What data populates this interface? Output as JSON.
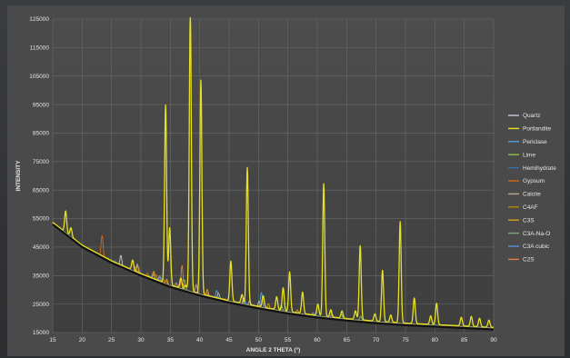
{
  "chart_data": {
    "type": "line",
    "xlabel": "ANGLE 2 THETA (°)",
    "ylabel": "INTENSITY",
    "xlim": [
      15,
      90
    ],
    "ylim": [
      15000,
      125000
    ],
    "xticks": [
      15,
      20,
      25,
      30,
      35,
      40,
      45,
      50,
      55,
      60,
      65,
      70,
      75,
      80,
      85,
      90
    ],
    "yticks": [
      15000,
      25000,
      35000,
      45000,
      55000,
      65000,
      75000,
      85000,
      95000,
      105000,
      115000,
      125000
    ],
    "grid": true,
    "legend_position": "right",
    "baseline": [
      [
        15,
        53000
      ],
      [
        20,
        45000
      ],
      [
        25,
        39500
      ],
      [
        30,
        35000
      ],
      [
        35,
        31000
      ],
      [
        40,
        28000
      ],
      [
        45,
        25500
      ],
      [
        50,
        23500
      ],
      [
        55,
        21700
      ],
      [
        60,
        20300
      ],
      [
        65,
        19200
      ],
      [
        70,
        18300
      ],
      [
        75,
        17600
      ],
      [
        80,
        17100
      ],
      [
        85,
        16600
      ],
      [
        90,
        16100
      ]
    ],
    "series": [
      {
        "name": "Quartz",
        "color": "#c8c8d8",
        "peaks": [
          [
            26.6,
            4000
          ],
          [
            50.1,
            2500
          ]
        ]
      },
      {
        "name": "Portlandite",
        "color": "#e8e020",
        "peaks": [
          [
            17.2,
            7500
          ],
          [
            18.1,
            3000
          ],
          [
            28.6,
            3500
          ],
          [
            34.2,
            62500
          ],
          [
            34.9,
            20000
          ],
          [
            36.8,
            3500
          ],
          [
            37.6,
            1500
          ],
          [
            38.4,
            97500
          ],
          [
            40.2,
            75000
          ],
          [
            45.3,
            14000
          ],
          [
            47.2,
            3000
          ],
          [
            48.1,
            48000
          ],
          [
            50.8,
            4000
          ],
          [
            53.1,
            4500
          ],
          [
            54.2,
            8000
          ],
          [
            55.3,
            14000
          ],
          [
            57.5,
            7500
          ],
          [
            60.1,
            4000
          ],
          [
            61.1,
            46500
          ],
          [
            62.3,
            2500
          ],
          [
            64.2,
            2500
          ],
          [
            66.5,
            3000
          ],
          [
            67.3,
            26000
          ],
          [
            69.8,
            2500
          ],
          [
            71.1,
            18000
          ],
          [
            72.5,
            2500
          ],
          [
            74.1,
            35500
          ],
          [
            76.5,
            9000
          ],
          [
            79.3,
            3000
          ],
          [
            80.3,
            7500
          ],
          [
            84.5,
            3000
          ],
          [
            86.2,
            3500
          ],
          [
            87.6,
            3000
          ],
          [
            89.2,
            2500
          ]
        ]
      },
      {
        "name": "Periclase",
        "color": "#4aa3df",
        "peaks": [
          [
            42.9,
            3000
          ],
          [
            62.3,
            2500
          ],
          [
            50.5,
            5500
          ]
        ]
      },
      {
        "name": "Lime",
        "color": "#8bc34a",
        "peaks": [
          [
            32.2,
            1500
          ],
          [
            37.4,
            3500
          ],
          [
            53.9,
            2000
          ],
          [
            64.1,
            1500
          ],
          [
            67.4,
            1500
          ]
        ]
      },
      {
        "name": "Hemihydrate",
        "color": "#3a6fb0",
        "peaks": [
          [
            14.7,
            2500
          ],
          [
            25.6,
            1500
          ],
          [
            29.7,
            2500
          ],
          [
            31.9,
            1500
          ]
        ]
      },
      {
        "name": "Gypsum",
        "color": "#d2691e",
        "peaks": [
          [
            23.4,
            7500
          ],
          [
            29.1,
            2000
          ],
          [
            31.1,
            1500
          ],
          [
            33.3,
            2000
          ]
        ]
      },
      {
        "name": "Calcite",
        "color": "#c0a890",
        "peaks": [
          [
            29.4,
            3000
          ],
          [
            36.0,
            1500
          ],
          [
            39.4,
            3000
          ],
          [
            43.2,
            2000
          ],
          [
            47.5,
            2000
          ],
          [
            48.5,
            1500
          ]
        ]
      },
      {
        "name": "C4AF",
        "color": "#b8860b",
        "peaks": [
          [
            12.2,
            1500
          ],
          [
            24.4,
            1000
          ],
          [
            33.8,
            2000
          ],
          [
            44.2,
            1000
          ],
          [
            47.4,
            1000
          ]
        ]
      },
      {
        "name": "C3S",
        "color": "#d4a017",
        "peaks": [
          [
            29.4,
            2500
          ],
          [
            32.2,
            3000
          ],
          [
            34.4,
            2000
          ],
          [
            41.3,
            2500
          ],
          [
            51.7,
            2000
          ],
          [
            56.6,
            1500
          ],
          [
            62.5,
            1500
          ]
        ]
      },
      {
        "name": "C3A-Na-O",
        "color": "#7fa67f",
        "peaks": [
          [
            33.2,
            2000
          ],
          [
            47.6,
            1500
          ],
          [
            59.3,
            1000
          ]
        ]
      },
      {
        "name": "C3A cubic",
        "color": "#5b8fd6",
        "peaks": [
          [
            33.2,
            2000
          ],
          [
            47.7,
            1500
          ],
          [
            59.4,
            1000
          ]
        ]
      },
      {
        "name": "C2S",
        "color": "#e08040",
        "peaks": [
          [
            32.1,
            2500
          ],
          [
            32.6,
            2000
          ],
          [
            34.3,
            1500
          ],
          [
            41.2,
            1500
          ],
          [
            37.0,
            8500
          ]
        ]
      }
    ]
  }
}
